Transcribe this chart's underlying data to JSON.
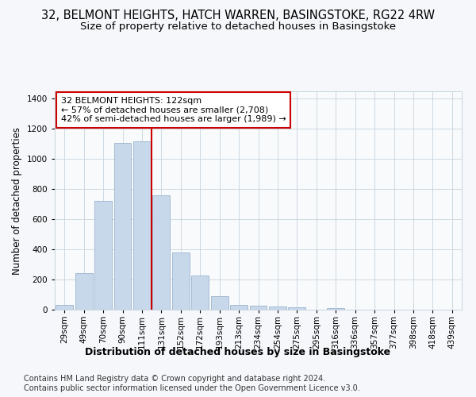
{
  "title_line1": "32, BELMONT HEIGHTS, HATCH WARREN, BASINGSTOKE, RG22 4RW",
  "title_line2": "Size of property relative to detached houses in Basingstoke",
  "xlabel": "Distribution of detached houses by size in Basingstoke",
  "ylabel": "Number of detached properties",
  "categories": [
    "29sqm",
    "49sqm",
    "70sqm",
    "90sqm",
    "111sqm",
    "131sqm",
    "152sqm",
    "172sqm",
    "193sqm",
    "213sqm",
    "234sqm",
    "254sqm",
    "275sqm",
    "295sqm",
    "316sqm",
    "336sqm",
    "357sqm",
    "377sqm",
    "398sqm",
    "418sqm",
    "439sqm"
  ],
  "values": [
    30,
    240,
    725,
    1105,
    1120,
    760,
    380,
    228,
    90,
    30,
    25,
    20,
    15,
    0,
    10,
    0,
    0,
    0,
    0,
    0,
    0
  ],
  "bar_color": "#c8d8eb",
  "bar_edge_color": "#9ab4cc",
  "vline_color": "#cc0000",
  "vline_x_index": 4,
  "annotation_text": "32 BELMONT HEIGHTS: 122sqm\n← 57% of detached houses are smaller (2,708)\n42% of semi-detached houses are larger (1,989) →",
  "annotation_box_color": "#ffffff",
  "annotation_box_edge": "#cc0000",
  "ylim": [
    0,
    1450
  ],
  "yticks": [
    0,
    200,
    400,
    600,
    800,
    1000,
    1200,
    1400
  ],
  "footer": "Contains HM Land Registry data © Crown copyright and database right 2024.\nContains public sector information licensed under the Open Government Licence v3.0.",
  "bg_color": "#f5f7fa",
  "plot_bg_color": "#f8fafc",
  "grid_color": "#c8d4de",
  "title_fontsize": 10.5,
  "subtitle_fontsize": 9.5,
  "xlabel_fontsize": 9,
  "ylabel_fontsize": 8.5,
  "tick_fontsize": 7.5,
  "annotation_fontsize": 8,
  "footer_fontsize": 7
}
